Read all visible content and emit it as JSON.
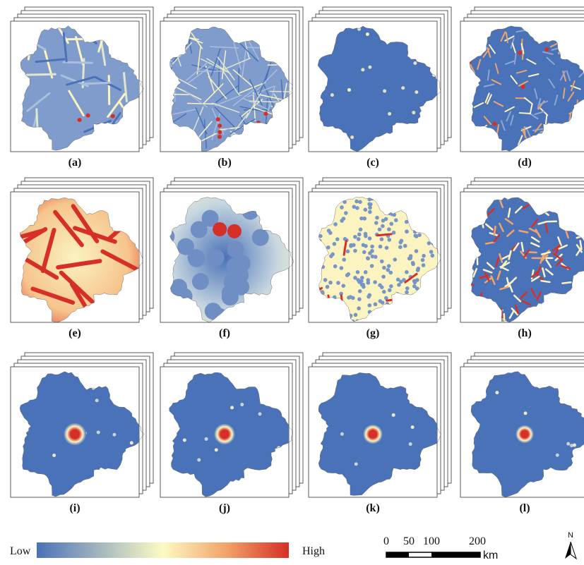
{
  "panels": [
    {
      "label": "(a)"
    },
    {
      "label": "(b)"
    },
    {
      "label": "(c)"
    },
    {
      "label": "(d)"
    },
    {
      "label": "(e)"
    },
    {
      "label": "(f)"
    },
    {
      "label": "(g)"
    },
    {
      "label": "(h)"
    },
    {
      "label": "(i)"
    },
    {
      "label": "(j)"
    },
    {
      "label": "(k)"
    },
    {
      "label": "(l)"
    }
  ],
  "legend": {
    "low": "Low",
    "high": "High"
  },
  "scale_bar": {
    "ticks": [
      "0",
      "50",
      "100",
      "200"
    ],
    "unit": "km"
  },
  "north": "N"
}
